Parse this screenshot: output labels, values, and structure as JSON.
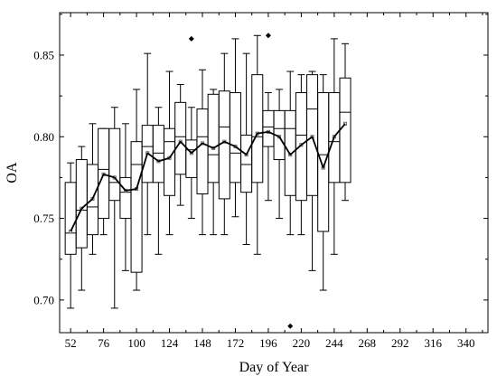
{
  "chart_data": {
    "type": "box",
    "xlabel": "Day of Year",
    "ylabel": "OA",
    "xlim": [
      44,
      356
    ],
    "ylim": [
      0.68,
      0.876
    ],
    "xticks": [
      52,
      76,
      100,
      124,
      148,
      172,
      196,
      220,
      244,
      268,
      292,
      316,
      340
    ],
    "xtick_labels": [
      "52",
      "76",
      "100",
      "124",
      "148",
      "172",
      "196",
      "220",
      "244",
      "268",
      "292",
      "316",
      "340"
    ],
    "yticks": [
      0.7,
      0.75,
      0.8,
      0.85
    ],
    "ytick_labels": [
      "0.70",
      "0.75",
      "0.80",
      "0.85"
    ],
    "grid": false,
    "legend": "none",
    "boxes": [
      {
        "x": 52,
        "whisker_low": 0.695,
        "q1": 0.728,
        "median": 0.741,
        "q3": 0.772,
        "whisker_high": 0.784,
        "mean": 0.742
      },
      {
        "x": 60,
        "whisker_low": 0.706,
        "q1": 0.732,
        "median": 0.755,
        "q3": 0.786,
        "whisker_high": 0.794,
        "mean": 0.756
      },
      {
        "x": 68,
        "whisker_low": 0.728,
        "q1": 0.74,
        "median": 0.757,
        "q3": 0.783,
        "whisker_high": 0.808,
        "mean": 0.762
      },
      {
        "x": 76,
        "whisker_low": 0.74,
        "q1": 0.75,
        "median": 0.78,
        "q3": 0.805,
        "whisker_high": 0.805,
        "mean": 0.777
      },
      {
        "x": 84,
        "whisker_low": 0.695,
        "q1": 0.761,
        "median": 0.772,
        "q3": 0.805,
        "whisker_high": 0.818,
        "mean": 0.775
      },
      {
        "x": 92,
        "whisker_low": 0.718,
        "q1": 0.75,
        "median": 0.766,
        "q3": 0.775,
        "whisker_high": 0.808,
        "mean": 0.767
      },
      {
        "x": 100,
        "whisker_low": 0.706,
        "q1": 0.717,
        "median": 0.783,
        "q3": 0.797,
        "whisker_high": 0.829,
        "mean": 0.768
      },
      {
        "x": 108,
        "whisker_low": 0.74,
        "q1": 0.772,
        "median": 0.794,
        "q3": 0.807,
        "whisker_high": 0.851,
        "mean": 0.79
      },
      {
        "x": 116,
        "whisker_low": 0.728,
        "q1": 0.772,
        "median": 0.79,
        "q3": 0.807,
        "whisker_high": 0.818,
        "mean": 0.785
      },
      {
        "x": 124,
        "whisker_low": 0.74,
        "q1": 0.764,
        "median": 0.797,
        "q3": 0.805,
        "whisker_high": 0.84,
        "mean": 0.787
      },
      {
        "x": 132,
        "whisker_low": 0.758,
        "q1": 0.777,
        "median": 0.8,
        "q3": 0.821,
        "whisker_high": 0.832,
        "mean": 0.797
      },
      {
        "x": 140,
        "whisker_low": 0.75,
        "q1": 0.775,
        "median": 0.792,
        "q3": 0.798,
        "whisker_high": 0.818,
        "mean": 0.79,
        "outliers": [
          0.86
        ]
      },
      {
        "x": 148,
        "whisker_low": 0.74,
        "q1": 0.765,
        "median": 0.8,
        "q3": 0.817,
        "whisker_high": 0.841,
        "mean": 0.796
      },
      {
        "x": 156,
        "whisker_low": 0.74,
        "q1": 0.772,
        "median": 0.789,
        "q3": 0.826,
        "whisker_high": 0.829,
        "mean": 0.793
      },
      {
        "x": 164,
        "whisker_low": 0.74,
        "q1": 0.762,
        "median": 0.806,
        "q3": 0.828,
        "whisker_high": 0.851,
        "mean": 0.797
      },
      {
        "x": 172,
        "whisker_low": 0.751,
        "q1": 0.772,
        "median": 0.79,
        "q3": 0.827,
        "whisker_high": 0.86,
        "mean": 0.794
      },
      {
        "x": 180,
        "whisker_low": 0.734,
        "q1": 0.766,
        "median": 0.783,
        "q3": 0.801,
        "whisker_high": 0.851,
        "mean": 0.789
      },
      {
        "x": 188,
        "whisker_low": 0.728,
        "q1": 0.772,
        "median": 0.8,
        "q3": 0.838,
        "whisker_high": 0.862,
        "mean": 0.802
      },
      {
        "x": 196,
        "whisker_low": 0.761,
        "q1": 0.794,
        "median": 0.806,
        "q3": 0.816,
        "whisker_high": 0.827,
        "mean": 0.803,
        "outliers": [
          0.862
        ]
      },
      {
        "x": 204,
        "whisker_low": 0.75,
        "q1": 0.786,
        "median": 0.805,
        "q3": 0.816,
        "whisker_high": 0.829,
        "mean": 0.8
      },
      {
        "x": 212,
        "whisker_low": 0.74,
        "q1": 0.764,
        "median": 0.805,
        "q3": 0.816,
        "whisker_high": 0.84,
        "mean": 0.789,
        "outliers": [
          0.684
        ]
      },
      {
        "x": 220,
        "whisker_low": 0.74,
        "q1": 0.761,
        "median": 0.801,
        "q3": 0.827,
        "whisker_high": 0.838,
        "mean": 0.795
      },
      {
        "x": 228,
        "whisker_low": 0.718,
        "q1": 0.764,
        "median": 0.817,
        "q3": 0.838,
        "whisker_high": 0.84,
        "mean": 0.8
      },
      {
        "x": 236,
        "whisker_low": 0.706,
        "q1": 0.742,
        "median": 0.789,
        "q3": 0.827,
        "whisker_high": 0.838,
        "mean": 0.781
      },
      {
        "x": 244,
        "whisker_low": 0.728,
        "q1": 0.772,
        "median": 0.797,
        "q3": 0.827,
        "whisker_high": 0.86,
        "mean": 0.8
      },
      {
        "x": 252,
        "whisker_low": 0.761,
        "q1": 0.772,
        "median": 0.815,
        "q3": 0.836,
        "whisker_high": 0.857,
        "mean": 0.808
      }
    ],
    "mean_line": {
      "x": [
        52,
        60,
        68,
        76,
        84,
        92,
        100,
        108,
        116,
        124,
        132,
        140,
        148,
        156,
        164,
        172,
        180,
        188,
        196,
        204,
        212,
        220,
        228,
        236,
        244,
        252
      ],
      "y": [
        0.742,
        0.756,
        0.762,
        0.777,
        0.775,
        0.767,
        0.768,
        0.79,
        0.785,
        0.787,
        0.797,
        0.79,
        0.796,
        0.793,
        0.797,
        0.794,
        0.789,
        0.802,
        0.803,
        0.8,
        0.789,
        0.795,
        0.8,
        0.781,
        0.8,
        0.808
      ]
    }
  }
}
